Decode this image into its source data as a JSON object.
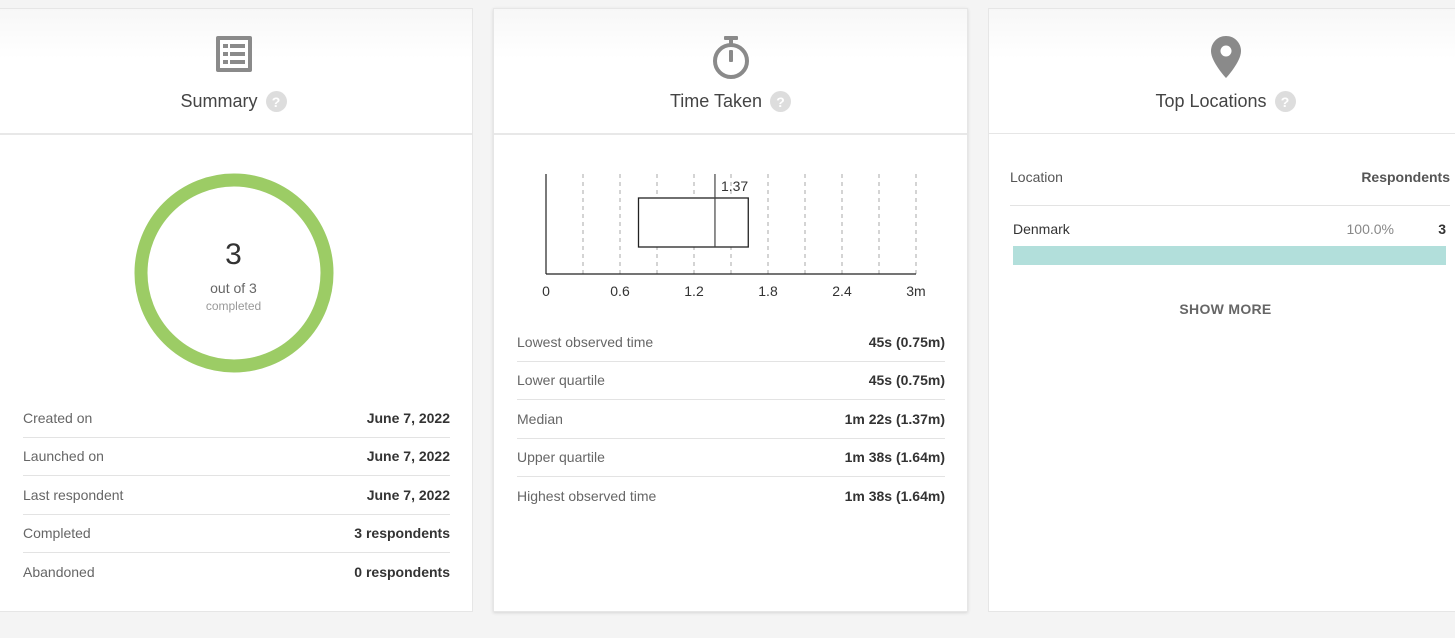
{
  "summary": {
    "title": "Summary",
    "help": "?",
    "completed_count": "3",
    "out_of": "out of 3",
    "completed_label": "completed",
    "completion_fraction": 1.0,
    "ring_color": "#9ccc65",
    "stats": [
      {
        "label": "Created on",
        "value": "June 7, 2022"
      },
      {
        "label": "Launched on",
        "value": "June 7, 2022"
      },
      {
        "label": "Last respondent",
        "value": "June 7, 2022"
      },
      {
        "label": "Completed",
        "value": "3 respondents"
      },
      {
        "label": "Abandoned",
        "value": "0 respondents"
      }
    ]
  },
  "time_taken": {
    "title": "Time Taken",
    "help": "?",
    "median_label": "1.37",
    "stats": [
      {
        "label": "Lowest observed time",
        "value": "45s (0.75m)"
      },
      {
        "label": "Lower quartile",
        "value": "45s (0.75m)"
      },
      {
        "label": "Median",
        "value": "1m 22s (1.37m)"
      },
      {
        "label": "Upper quartile",
        "value": "1m 38s (1.64m)"
      },
      {
        "label": "Highest observed time",
        "value": "1m 38s (1.64m)"
      }
    ]
  },
  "chart_data": {
    "type": "boxplot",
    "x_ticks": [
      "0",
      "0.6",
      "1.2",
      "1.8",
      "2.4",
      "3m"
    ],
    "xlim": [
      0,
      3
    ],
    "min": 0.75,
    "q1": 0.75,
    "median": 1.37,
    "q3": 1.64,
    "max": 1.64,
    "gridlines": "dashed"
  },
  "locations": {
    "title": "Top Locations",
    "help": "?",
    "col_location": "Location",
    "col_respondents": "Respondents",
    "rows": [
      {
        "name": "Denmark",
        "percent": "100.0%",
        "count": "3",
        "fraction": 1.0
      }
    ],
    "bar_color": "#b2dfdb",
    "show_more": "SHOW MORE"
  }
}
